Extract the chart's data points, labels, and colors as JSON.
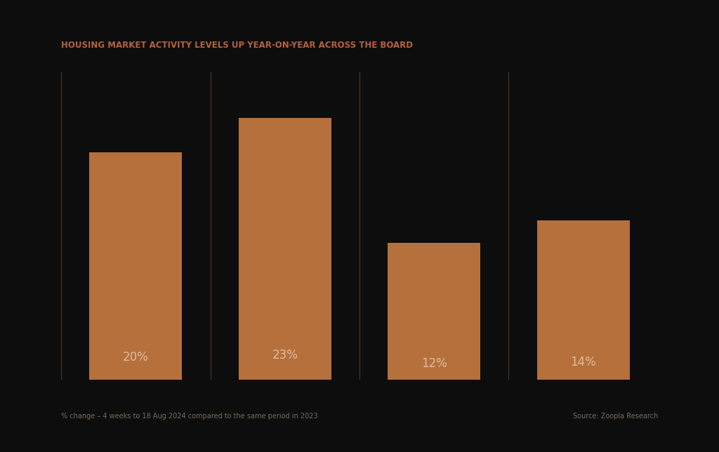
{
  "title": "HOUSING MARKET ACTIVITY LEVELS UP YEAR-ON-YEAR ACROSS THE BOARD",
  "title_color": "#b5623c",
  "background_color": "#0d0d0d",
  "bar_color": "#b5703c",
  "values": [
    20,
    23,
    12,
    14
  ],
  "labels": [
    "20%",
    "23%",
    "12%",
    "14%"
  ],
  "label_color": "#e0bda0",
  "separator_color": "#4a3a2a",
  "footer_left": "% change – 4 weeks to 18 Aug 2024 compared to the same period in 2023",
  "footer_right": "Source: Zoopla Research",
  "footer_color": "#7a6a5a",
  "title_fontsize": 8.5,
  "label_fontsize": 12,
  "footer_fontsize": 7
}
